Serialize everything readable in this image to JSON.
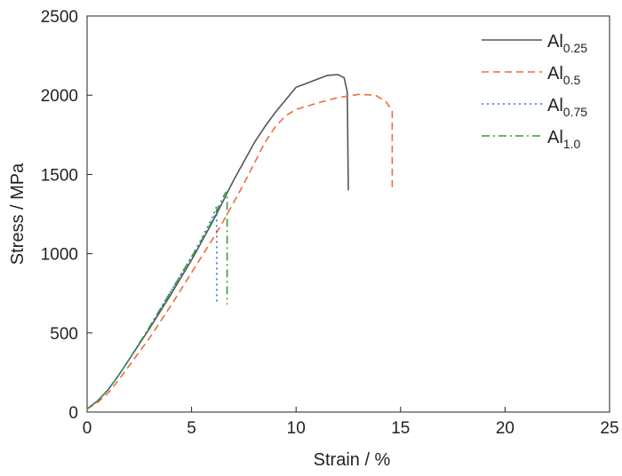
{
  "chart_data": {
    "type": "line",
    "title": "",
    "xlabel": "Strain / %",
    "ylabel": "Stress / MPa",
    "xlim": [
      0,
      25
    ],
    "ylim": [
      0,
      2500
    ],
    "xticks": [
      0,
      5,
      10,
      15,
      20,
      25
    ],
    "yticks": [
      0,
      500,
      1000,
      1500,
      2000,
      2500
    ],
    "grid": false,
    "legend_position": "top-right",
    "series": [
      {
        "name": "Al0.25",
        "label_base": "Al",
        "label_sub": "0.25",
        "color": "#555555",
        "dash": "solid",
        "points": [
          [
            0,
            20
          ],
          [
            0.5,
            70
          ],
          [
            1,
            140
          ],
          [
            1.5,
            230
          ],
          [
            2,
            330
          ],
          [
            3,
            530
          ],
          [
            4,
            740
          ],
          [
            5,
            960
          ],
          [
            6,
            1200
          ],
          [
            6.5,
            1330
          ],
          [
            7,
            1460
          ],
          [
            7.5,
            1580
          ],
          [
            8,
            1700
          ],
          [
            8.5,
            1800
          ],
          [
            9,
            1890
          ],
          [
            9.5,
            1970
          ],
          [
            10,
            2050
          ],
          [
            10.5,
            2075
          ],
          [
            11,
            2100
          ],
          [
            11.5,
            2125
          ],
          [
            12,
            2130
          ],
          [
            12.3,
            2110
          ],
          [
            12.45,
            2020
          ],
          [
            12.5,
            1400
          ]
        ]
      },
      {
        "name": "Al0.5",
        "label_base": "Al",
        "label_sub": "0.5",
        "color": "#f26a3e",
        "dash": "dashed",
        "points": [
          [
            0,
            20
          ],
          [
            0.5,
            60
          ],
          [
            1,
            120
          ],
          [
            1.5,
            200
          ],
          [
            2,
            290
          ],
          [
            3,
            470
          ],
          [
            4,
            670
          ],
          [
            5,
            880
          ],
          [
            6,
            1090
          ],
          [
            6.5,
            1200
          ],
          [
            7,
            1320
          ],
          [
            7.5,
            1440
          ],
          [
            8,
            1570
          ],
          [
            8.5,
            1700
          ],
          [
            9,
            1800
          ],
          [
            9.5,
            1870
          ],
          [
            10,
            1910
          ],
          [
            11,
            1950
          ],
          [
            12,
            1985
          ],
          [
            13,
            2005
          ],
          [
            13.8,
            2000
          ],
          [
            14.3,
            1960
          ],
          [
            14.6,
            1900
          ],
          [
            14.6,
            1390
          ]
        ]
      },
      {
        "name": "Al0.75",
        "label_base": "Al",
        "label_sub": "0.75",
        "color": "#3a70c8",
        "dash": "dotted",
        "points": [
          [
            0,
            20
          ],
          [
            0.5,
            70
          ],
          [
            1,
            140
          ],
          [
            1.5,
            230
          ],
          [
            2,
            330
          ],
          [
            3,
            540
          ],
          [
            4,
            760
          ],
          [
            5,
            980
          ],
          [
            5.5,
            1100
          ],
          [
            6,
            1230
          ],
          [
            6.2,
            1300
          ],
          [
            6.2,
            680
          ]
        ]
      },
      {
        "name": "Al1.0",
        "label_base": "Al",
        "label_sub": "1.0",
        "color": "#2f9e44",
        "dash": "dashdot",
        "points": [
          [
            0,
            20
          ],
          [
            0.5,
            70
          ],
          [
            1,
            140
          ],
          [
            1.5,
            230
          ],
          [
            2,
            330
          ],
          [
            3,
            540
          ],
          [
            4,
            760
          ],
          [
            5,
            980
          ],
          [
            5.5,
            1090
          ],
          [
            6,
            1210
          ],
          [
            6.3,
            1300
          ],
          [
            6.6,
            1380
          ],
          [
            6.7,
            1390
          ],
          [
            6.7,
            680
          ]
        ]
      }
    ]
  }
}
